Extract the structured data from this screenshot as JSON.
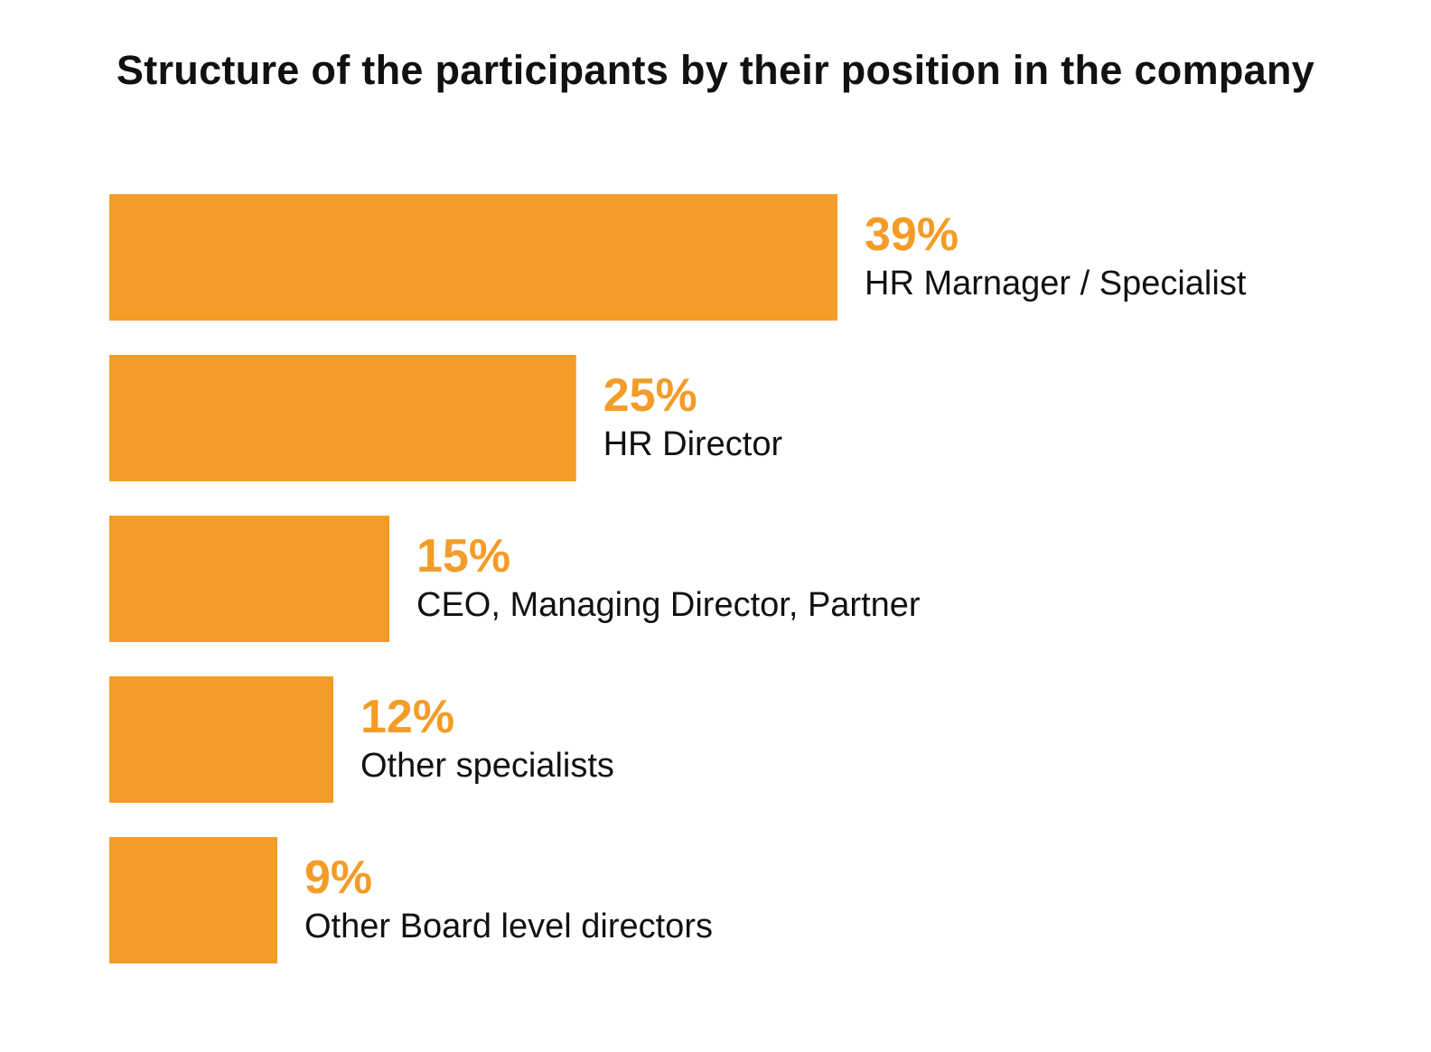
{
  "chart_data": {
    "type": "bar",
    "orientation": "horizontal",
    "title": "Structure of the participants by their position in the company",
    "categories": [
      "HR Marnager / Specialist",
      "HR Director",
      "CEO, Managing Director, Partner",
      "Other specialists",
      "Other Board level directors"
    ],
    "values": [
      39,
      25,
      15,
      12,
      9
    ],
    "value_labels": [
      "39%",
      "25%",
      "15%",
      "12%",
      "9%"
    ],
    "unit": "%",
    "xlim": [
      0,
      39
    ],
    "grid": false,
    "axes_visible": false,
    "colors": {
      "bar": "#f39c28",
      "value_label": "#f39c28",
      "category_label": "#111111",
      "title": "#111111"
    }
  }
}
